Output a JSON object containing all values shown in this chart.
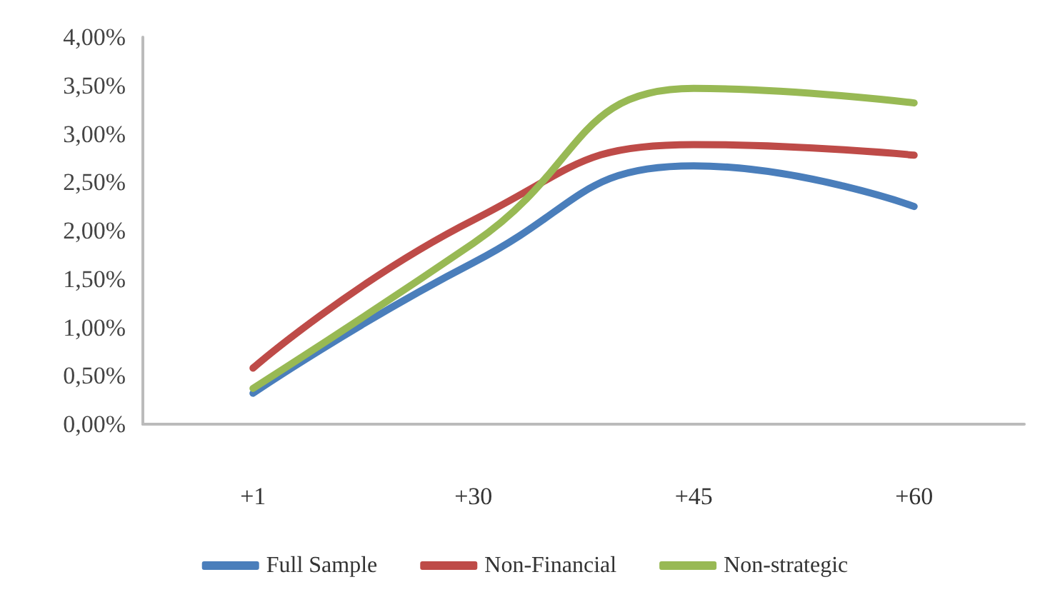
{
  "chart_data": {
    "type": "line",
    "categories": [
      "+1",
      "+30",
      "+45",
      "+60"
    ],
    "series": [
      {
        "name": "Full Sample",
        "color": "#4a7ebb",
        "values": [
          0.32,
          1.67,
          2.67,
          2.25
        ]
      },
      {
        "name": "Non-Financial",
        "color": "#be4b48",
        "values": [
          0.58,
          2.11,
          2.89,
          2.78
        ]
      },
      {
        "name": "Non-strategic",
        "color": "#98b954",
        "values": [
          0.37,
          1.87,
          3.47,
          3.32
        ]
      }
    ],
    "ylim": [
      0,
      4
    ],
    "yticks": [
      {
        "value": 0,
        "label": "0,00%"
      },
      {
        "value": 0.5,
        "label": "0,50%"
      },
      {
        "value": 1,
        "label": "1,00%"
      },
      {
        "value": 1.5,
        "label": "1,50%"
      },
      {
        "value": 2,
        "label": "2,00%"
      },
      {
        "value": 2.5,
        "label": "2,50%"
      },
      {
        "value": 3,
        "label": "3,00%"
      },
      {
        "value": 3.5,
        "label": "3,50%"
      },
      {
        "value": 4,
        "label": "4,00%"
      }
    ],
    "grid": false,
    "legend": "bottom",
    "marker": "none",
    "line_style": "solid"
  }
}
